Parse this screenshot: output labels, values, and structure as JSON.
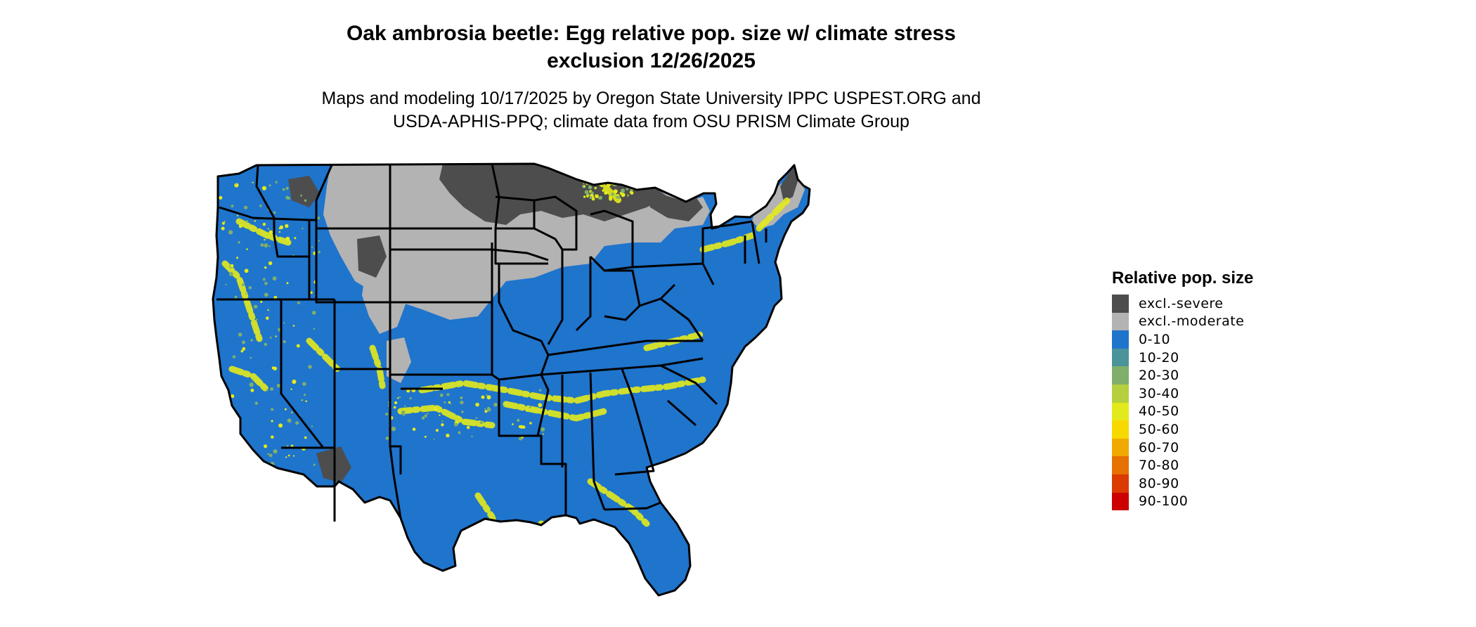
{
  "title": {
    "line1": "Oak ambrosia beetle: Egg relative pop. size w/ climate stress",
    "line2": "exclusion 12/26/2025"
  },
  "subtitle": {
    "line1": "Maps and modeling 10/17/2025 by Oregon State University IPPC USPEST.ORG and",
    "line2": "USDA-APHIS-PPQ; climate data from OSU PRISM Climate Group"
  },
  "legend": {
    "title": "Relative pop. size",
    "items": [
      {
        "label": "excl.-severe",
        "color": "#4d4d4d"
      },
      {
        "label": "excl.-moderate",
        "color": "#b3b3b3"
      },
      {
        "label": "0-10",
        "color": "#1f74cc"
      },
      {
        "label": "10-20",
        "color": "#4a9499"
      },
      {
        "label": "20-30",
        "color": "#7faf6a"
      },
      {
        "label": "30-40",
        "color": "#b5cf3e"
      },
      {
        "label": "40-50",
        "color": "#e3ea1c"
      },
      {
        "label": "50-60",
        "color": "#f7d900"
      },
      {
        "label": "60-70",
        "color": "#f0a900"
      },
      {
        "label": "70-80",
        "color": "#e67100"
      },
      {
        "label": "80-90",
        "color": "#db3a00"
      },
      {
        "label": "90-100",
        "color": "#cc0000"
      }
    ]
  },
  "map": {
    "region": "Contiguous United States",
    "base_color": "#1f74cc",
    "severe_color": "#4d4d4d",
    "moderate_color": "#b3b3b3",
    "hotspot_color": "#e3ea1c",
    "border_color": "#000000"
  }
}
